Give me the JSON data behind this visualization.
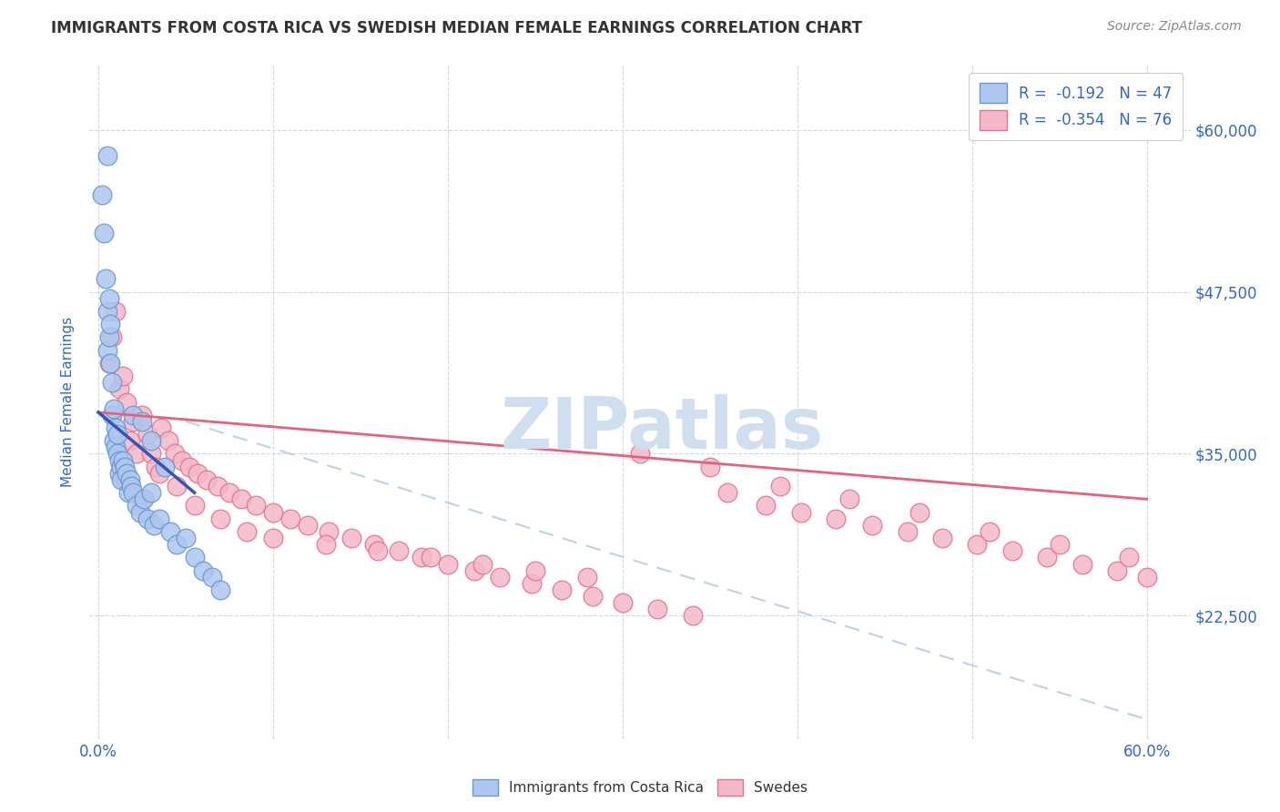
{
  "title": "IMMIGRANTS FROM COSTA RICA VS SWEDISH MEDIAN FEMALE EARNINGS CORRELATION CHART",
  "source": "Source: ZipAtlas.com",
  "ylabel": "Median Female Earnings",
  "y_tick_values": [
    22500,
    35000,
    47500,
    60000
  ],
  "y_tick_labels": [
    "$22,500",
    "$35,000",
    "$47,500",
    "$60,000"
  ],
  "x_tick_positions": [
    0.0,
    0.1,
    0.2,
    0.3,
    0.4,
    0.5,
    0.6
  ],
  "x_tick_labels": [
    "0.0%",
    "",
    "",
    "",
    "",
    "",
    "60.0%"
  ],
  "x_min": -0.005,
  "x_max": 0.625,
  "y_min": 13000,
  "y_max": 65000,
  "blue_scatter_x": [
    0.002,
    0.003,
    0.004,
    0.005,
    0.005,
    0.006,
    0.006,
    0.007,
    0.007,
    0.008,
    0.008,
    0.009,
    0.009,
    0.01,
    0.01,
    0.011,
    0.011,
    0.012,
    0.012,
    0.013,
    0.013,
    0.014,
    0.015,
    0.016,
    0.017,
    0.018,
    0.019,
    0.02,
    0.022,
    0.024,
    0.026,
    0.028,
    0.03,
    0.032,
    0.035,
    0.038,
    0.041,
    0.045,
    0.05,
    0.055,
    0.06,
    0.065,
    0.07,
    0.02,
    0.025,
    0.03,
    0.005
  ],
  "blue_scatter_y": [
    55000,
    52000,
    48500,
    46000,
    43000,
    47000,
    44000,
    45000,
    42000,
    40500,
    38000,
    38500,
    36000,
    37000,
    35500,
    36500,
    35000,
    34500,
    33500,
    34000,
    33000,
    34500,
    34000,
    33500,
    32000,
    33000,
    32500,
    32000,
    31000,
    30500,
    31500,
    30000,
    32000,
    29500,
    30000,
    34000,
    29000,
    28000,
    28500,
    27000,
    26000,
    25500,
    24500,
    38000,
    37500,
    36000,
    58000
  ],
  "pink_scatter_x": [
    0.006,
    0.008,
    0.01,
    0.012,
    0.014,
    0.016,
    0.018,
    0.02,
    0.022,
    0.025,
    0.028,
    0.03,
    0.033,
    0.036,
    0.04,
    0.044,
    0.048,
    0.052,
    0.057,
    0.062,
    0.068,
    0.075,
    0.082,
    0.09,
    0.1,
    0.11,
    0.12,
    0.132,
    0.145,
    0.158,
    0.172,
    0.185,
    0.2,
    0.215,
    0.23,
    0.248,
    0.265,
    0.283,
    0.3,
    0.32,
    0.34,
    0.36,
    0.382,
    0.402,
    0.422,
    0.443,
    0.463,
    0.483,
    0.503,
    0.523,
    0.543,
    0.563,
    0.583,
    0.6,
    0.015,
    0.025,
    0.035,
    0.045,
    0.055,
    0.07,
    0.085,
    0.1,
    0.13,
    0.16,
    0.19,
    0.22,
    0.25,
    0.28,
    0.31,
    0.35,
    0.39,
    0.43,
    0.47,
    0.51,
    0.55,
    0.59
  ],
  "pink_scatter_y": [
    42000,
    44000,
    46000,
    40000,
    41000,
    39000,
    36000,
    37500,
    35000,
    38000,
    36500,
    35000,
    34000,
    37000,
    36000,
    35000,
    34500,
    34000,
    33500,
    33000,
    32500,
    32000,
    31500,
    31000,
    30500,
    30000,
    29500,
    29000,
    28500,
    28000,
    27500,
    27000,
    26500,
    26000,
    25500,
    25000,
    24500,
    24000,
    23500,
    23000,
    22500,
    32000,
    31000,
    30500,
    30000,
    29500,
    29000,
    28500,
    28000,
    27500,
    27000,
    26500,
    26000,
    25500,
    33000,
    31500,
    33500,
    32500,
    31000,
    30000,
    29000,
    28500,
    28000,
    27500,
    27000,
    26500,
    26000,
    25500,
    35000,
    34000,
    32500,
    31500,
    30500,
    29000,
    28000,
    27000
  ],
  "blue_line_x": [
    0.0,
    0.055
  ],
  "blue_line_y": [
    38200,
    32000
  ],
  "pink_line_x": [
    0.0,
    0.6
  ],
  "pink_line_y": [
    38200,
    31500
  ],
  "dashed_line_x": [
    0.05,
    0.6
  ],
  "dashed_line_y": [
    37500,
    14500
  ],
  "background_color": "#ffffff",
  "grid_color": "#d0d8e8",
  "blue_dot_face": "#aec6f0",
  "blue_dot_edge": "#6699cc",
  "pink_dot_face": "#f4b8c8",
  "pink_dot_edge": "#e87090",
  "blue_line_color": "#3355bb",
  "pink_line_color": "#e8607a",
  "dashed_line_color": "#aec6e0",
  "title_color": "#333333",
  "axis_color": "#3366cc",
  "source_color": "#888888",
  "watermark_text": "ZIPatlas",
  "watermark_color": "#d0dff0"
}
